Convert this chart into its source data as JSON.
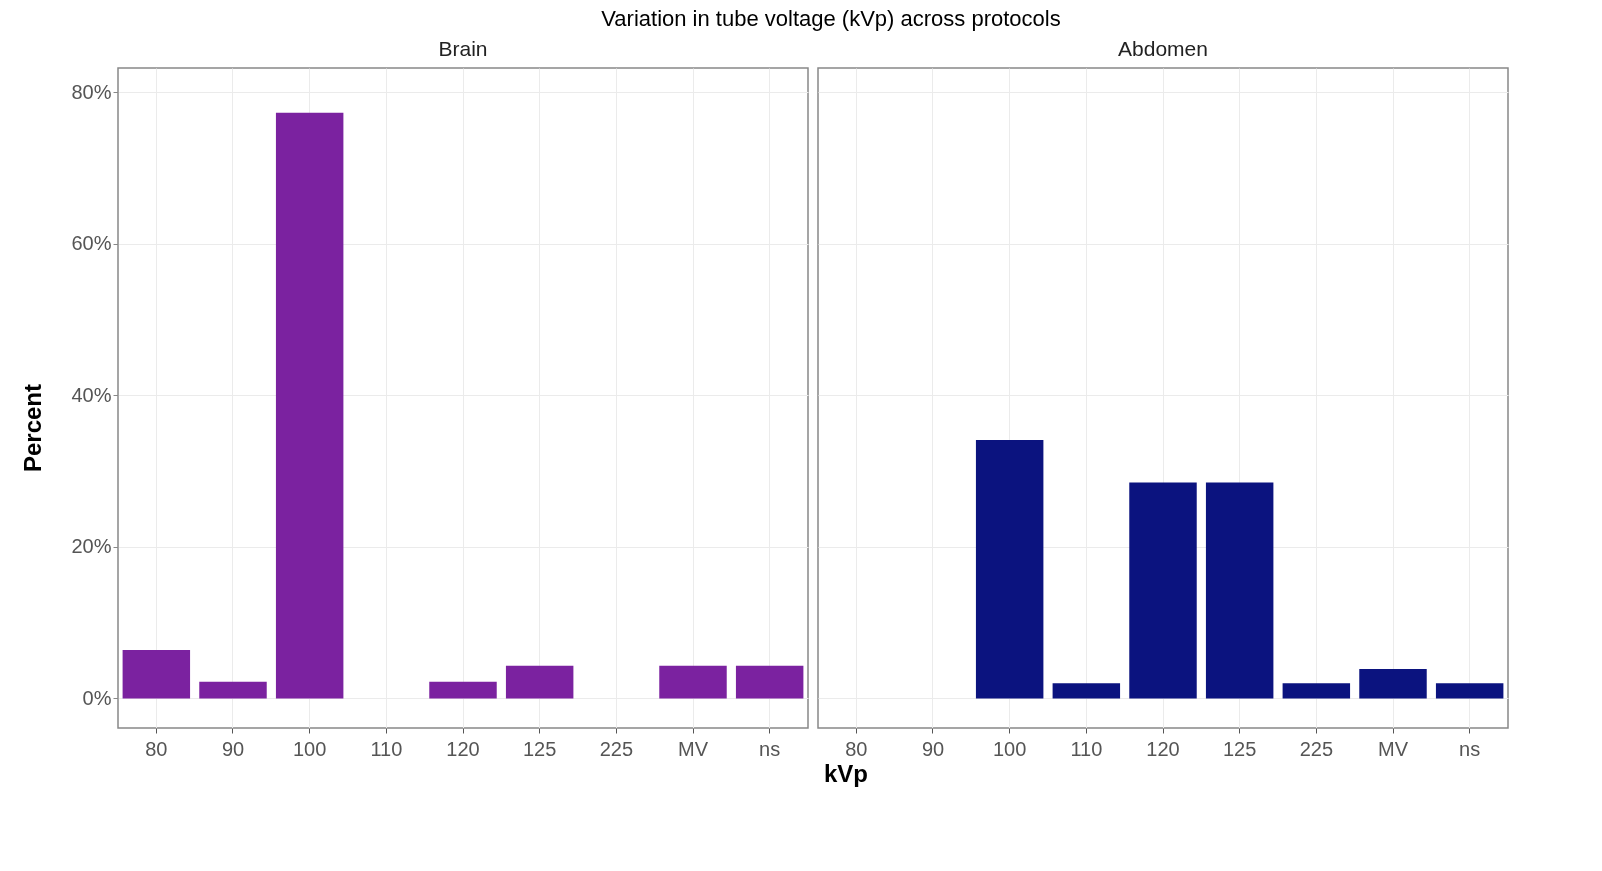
{
  "chart_data": [
    {
      "type": "bar",
      "title": "Variation in tube voltage (kVp) across protocols",
      "subtitle": "Brain",
      "xlabel": "kVp",
      "ylabel": "Percent",
      "categories": [
        "80",
        "90",
        "100",
        "110",
        "120",
        "125",
        "225",
        "MV",
        "ns"
      ],
      "values": [
        6.4,
        2.2,
        77.3,
        0,
        2.2,
        4.3,
        0,
        4.3,
        4.3
      ],
      "color": "#7b22a0",
      "ylim": [
        -3.9,
        83.2
      ],
      "yticks": [
        {
          "value": 0,
          "label": "0%"
        },
        {
          "value": 20,
          "label": "20%"
        },
        {
          "value": 40,
          "label": "40%"
        },
        {
          "value": 60,
          "label": "60%"
        },
        {
          "value": 80,
          "label": "80%"
        }
      ],
      "grid": true
    },
    {
      "type": "bar",
      "subtitle": "Abdomen",
      "categories": [
        "80",
        "90",
        "100",
        "110",
        "120",
        "125",
        "225",
        "MV",
        "ns"
      ],
      "values": [
        0,
        0,
        34.1,
        2.0,
        28.5,
        28.5,
        2.0,
        3.9,
        2.0
      ],
      "color": "#0b137f",
      "ylim": [
        -3.9,
        83.2
      ],
      "yticks": [
        {
          "value": 0,
          "label": null
        },
        {
          "value": 20,
          "label": null
        },
        {
          "value": 40,
          "label": null
        },
        {
          "value": 60,
          "label": null
        },
        {
          "value": 80,
          "label": null
        }
      ],
      "grid": true,
      "tick_labels": "x"
    }
  ]
}
